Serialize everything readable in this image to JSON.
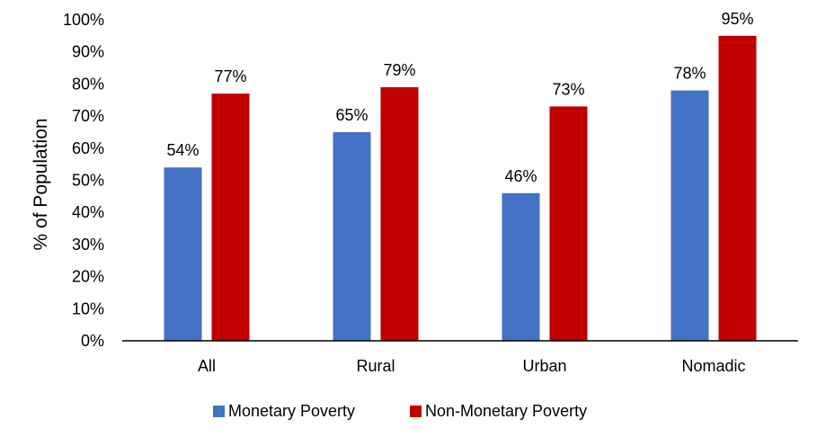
{
  "chart_data": {
    "type": "bar",
    "title": "",
    "xlabel": "",
    "ylabel": "% of Population",
    "ylim": [
      0,
      100
    ],
    "y_ticks": [
      "0%",
      "10%",
      "20%",
      "30%",
      "40%",
      "50%",
      "60%",
      "70%",
      "80%",
      "90%",
      "100%"
    ],
    "categories": [
      "All",
      "Rural",
      "Urban",
      "Nomadic"
    ],
    "series": [
      {
        "name": "Monetary Poverty",
        "color": "#4472C4",
        "values": [
          54,
          65,
          46,
          78
        ],
        "labels": [
          "54%",
          "65%",
          "46%",
          "78%"
        ]
      },
      {
        "name": "Non-Monetary Poverty",
        "color": "#C00000",
        "values": [
          77,
          79,
          73,
          95
        ],
        "labels": [
          "77%",
          "79%",
          "73%",
          "95%"
        ]
      }
    ],
    "grid": false,
    "legend_position": "bottom"
  }
}
